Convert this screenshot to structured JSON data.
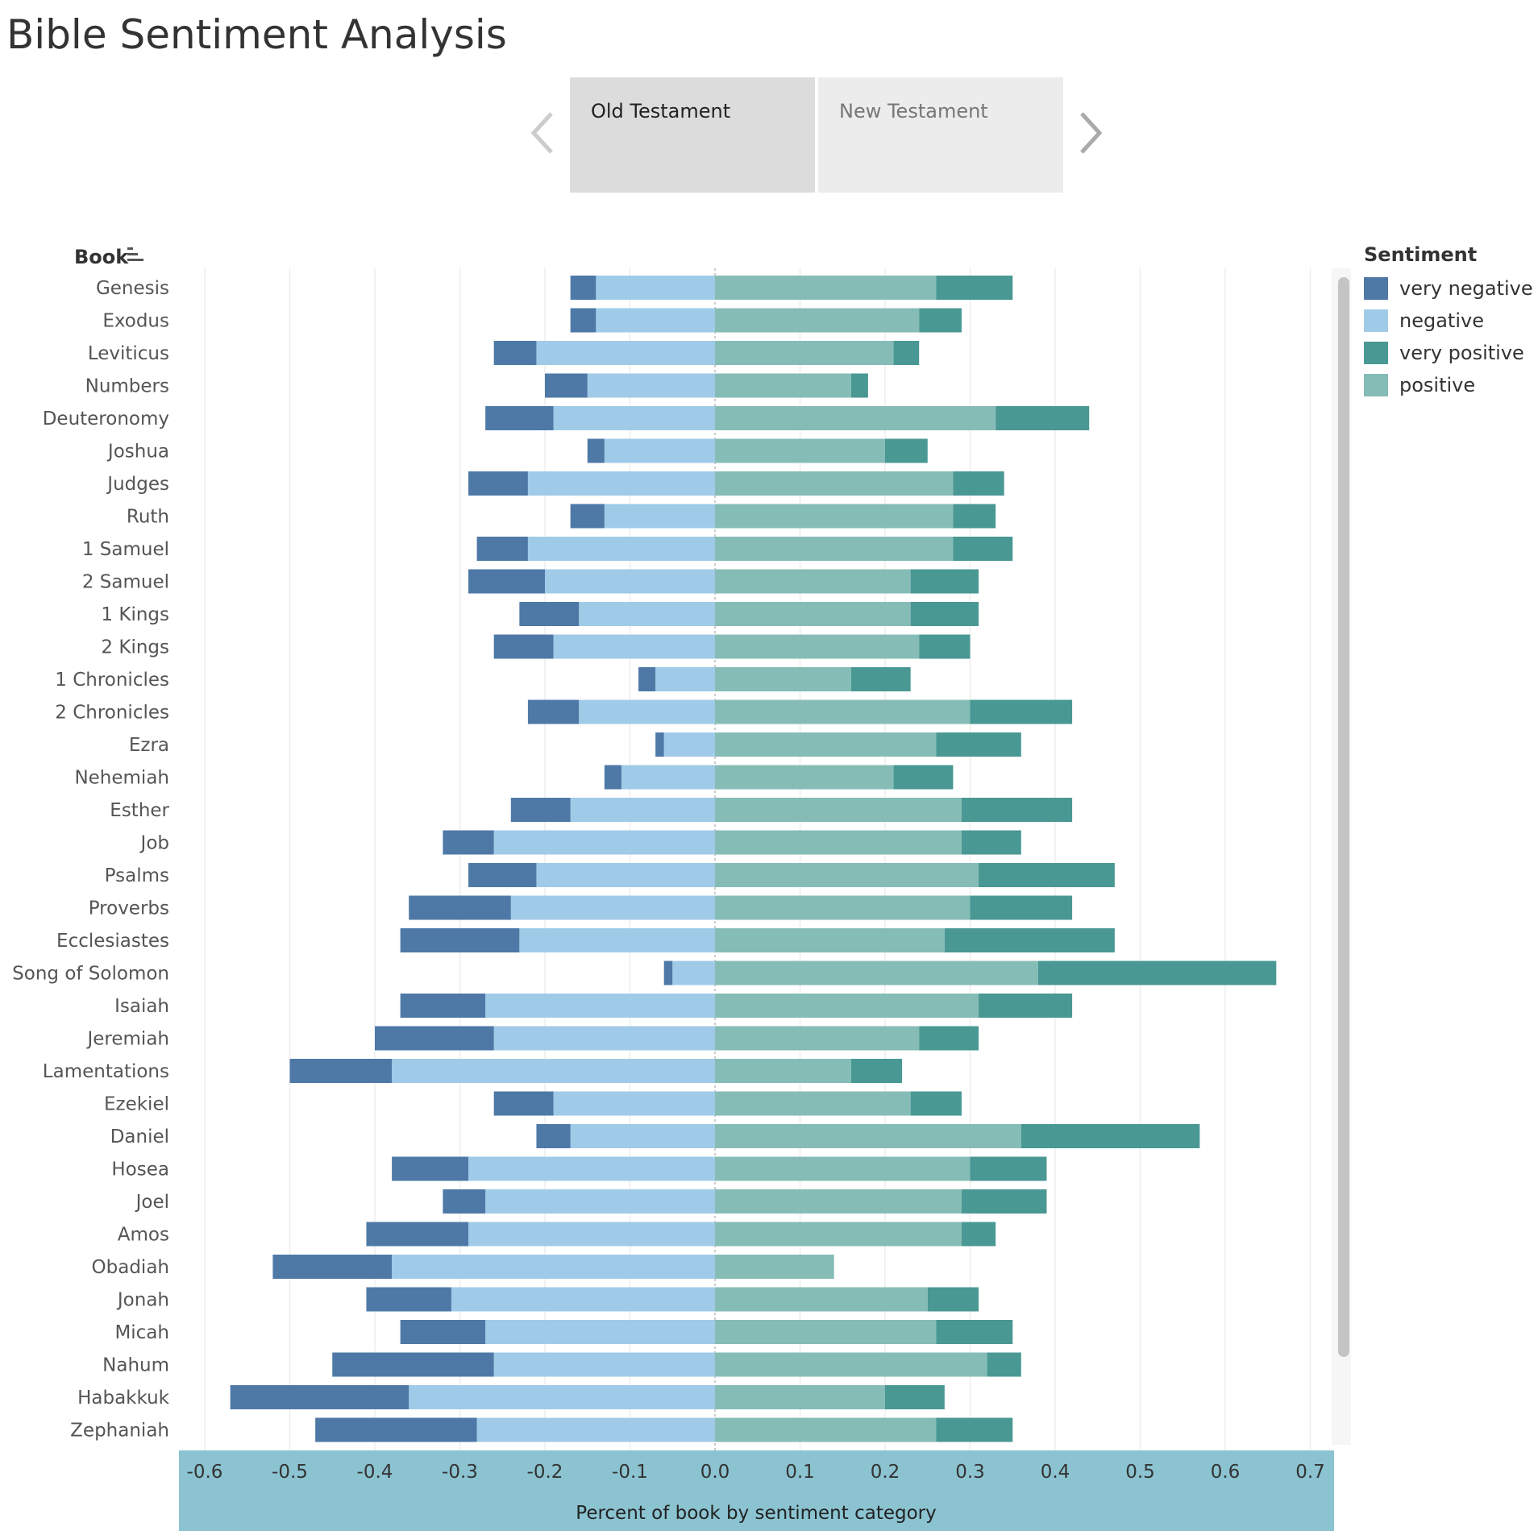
{
  "title": "Bible Sentiment Analysis",
  "tabs": [
    {
      "label": "Old Testament",
      "active": true
    },
    {
      "label": "New Testament",
      "active": false
    }
  ],
  "colors": {
    "very_negative": "#4e79a7",
    "negative": "#a0cbe8",
    "very_positive": "#499894",
    "positive": "#86bcb6",
    "axis_band": "#8bc3d1",
    "grid": "#eeeeee",
    "zero_line": "#bbbbbb",
    "text": "#333333"
  },
  "legend": {
    "title": "Sentiment",
    "items": [
      {
        "label": "very negative",
        "color": "#4e79a7"
      },
      {
        "label": "negative",
        "color": "#a0cbe8"
      },
      {
        "label": "very positive",
        "color": "#499894"
      },
      {
        "label": "positive",
        "color": "#86bcb6"
      }
    ]
  },
  "chart_data": {
    "type": "bar",
    "orientation": "horizontal",
    "stacked": "diverging",
    "row_header": "Book",
    "xlabel": "Percent of book by sentiment category",
    "xlim": [
      -0.6,
      0.7
    ],
    "xticks": [
      -0.6,
      -0.5,
      -0.4,
      -0.3,
      -0.2,
      -0.1,
      0.0,
      0.1,
      0.2,
      0.3,
      0.4,
      0.5,
      0.6,
      0.7
    ],
    "xtick_labels": [
      "-0.6",
      "-0.5",
      "-0.4",
      "-0.3",
      "-0.2",
      "-0.1",
      "0.0",
      "0.1",
      "0.2",
      "0.3",
      "0.4",
      "0.5",
      "0.6",
      "0.7"
    ],
    "grid": true,
    "legend_position": "right",
    "categories": [
      "Genesis",
      "Exodus",
      "Leviticus",
      "Numbers",
      "Deuteronomy",
      "Joshua",
      "Judges",
      "Ruth",
      "1 Samuel",
      "2 Samuel",
      "1 Kings",
      "2 Kings",
      "1 Chronicles",
      "2 Chronicles",
      "Ezra",
      "Nehemiah",
      "Esther",
      "Job",
      "Psalms",
      "Proverbs",
      "Ecclesiastes",
      "Song of Solomon",
      "Isaiah",
      "Jeremiah",
      "Lamentations",
      "Ezekiel",
      "Daniel",
      "Hosea",
      "Joel",
      "Amos",
      "Obadiah",
      "Jonah",
      "Micah",
      "Nahum",
      "Habakkuk",
      "Zephaniah"
    ],
    "series": [
      {
        "name": "very negative",
        "values": [
          -0.03,
          -0.03,
          -0.05,
          -0.05,
          -0.08,
          -0.02,
          -0.07,
          -0.04,
          -0.06,
          -0.09,
          -0.07,
          -0.07,
          -0.02,
          -0.06,
          -0.01,
          -0.02,
          -0.07,
          -0.06,
          -0.08,
          -0.12,
          -0.14,
          -0.01,
          -0.1,
          -0.14,
          -0.12,
          -0.07,
          -0.04,
          -0.09,
          -0.05,
          -0.12,
          -0.14,
          -0.1,
          -0.1,
          -0.19,
          -0.21,
          -0.19
        ]
      },
      {
        "name": "negative",
        "values": [
          -0.14,
          -0.14,
          -0.21,
          -0.15,
          -0.19,
          -0.13,
          -0.22,
          -0.13,
          -0.22,
          -0.2,
          -0.16,
          -0.19,
          -0.07,
          -0.16,
          -0.06,
          -0.11,
          -0.17,
          -0.26,
          -0.21,
          -0.24,
          -0.23,
          -0.05,
          -0.27,
          -0.26,
          -0.38,
          -0.19,
          -0.17,
          -0.29,
          -0.27,
          -0.29,
          -0.38,
          -0.31,
          -0.27,
          -0.26,
          -0.36,
          -0.28
        ]
      },
      {
        "name": "positive",
        "values": [
          0.26,
          0.24,
          0.21,
          0.16,
          0.33,
          0.2,
          0.28,
          0.28,
          0.28,
          0.23,
          0.23,
          0.24,
          0.16,
          0.3,
          0.26,
          0.21,
          0.29,
          0.29,
          0.31,
          0.3,
          0.27,
          0.38,
          0.31,
          0.24,
          0.16,
          0.23,
          0.36,
          0.3,
          0.29,
          0.29,
          0.14,
          0.25,
          0.26,
          0.32,
          0.2,
          0.26
        ]
      },
      {
        "name": "very positive",
        "values": [
          0.09,
          0.05,
          0.03,
          0.02,
          0.11,
          0.05,
          0.06,
          0.05,
          0.07,
          0.08,
          0.08,
          0.06,
          0.07,
          0.12,
          0.1,
          0.07,
          0.13,
          0.07,
          0.16,
          0.12,
          0.2,
          0.28,
          0.11,
          0.07,
          0.06,
          0.06,
          0.21,
          0.09,
          0.1,
          0.04,
          0.0,
          0.06,
          0.09,
          0.04,
          0.07,
          0.09
        ]
      }
    ]
  }
}
